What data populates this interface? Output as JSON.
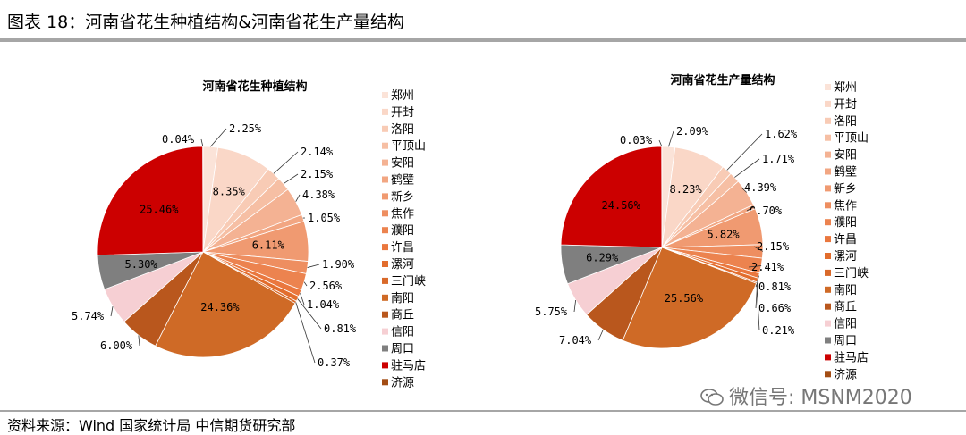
{
  "header": {
    "title": "图表 18：河南省花生种植结构&河南省花生产量结构"
  },
  "footer": {
    "source": "资料来源：Wind 国家统计局 中信期货研究部"
  },
  "watermark": {
    "text": "微信号: MSNM2020",
    "icon": "wechat-icon"
  },
  "colors": {
    "郑州": "#fbe3d8",
    "开封": "#fad7c7",
    "洛阳": "#f8cbb5",
    "平顶山": "#f6bfa4",
    "安阳": "#f4b293",
    "鹤壁": "#f2a682",
    "新乡": "#f09a71",
    "焦作": "#ee8e60",
    "濮阳": "#ec834f",
    "许昌": "#ea773e",
    "漯河": "#e26d2d",
    "三门峡": "#d9692a",
    "南阳": "#cf6a26",
    "商丘": "#b9571d",
    "信阳": "#f6cfd3",
    "周口": "#7f7f7f",
    "驻马店": "#cc0000",
    "济源": "#a34d14"
  },
  "chart_data": [
    {
      "type": "pie",
      "title": "河南省花生种植结构",
      "labels": [
        "郑州",
        "开封",
        "洛阳",
        "平顶山",
        "安阳",
        "鹤壁",
        "新乡",
        "焦作",
        "濮阳",
        "许昌",
        "漯河",
        "三门峡",
        "南阳",
        "商丘",
        "信阳",
        "周口",
        "驻马店",
        "济源"
      ],
      "values": [
        2.25,
        8.35,
        2.14,
        2.15,
        4.38,
        1.05,
        6.11,
        1.9,
        2.56,
        1.04,
        0.81,
        0.37,
        24.36,
        6.0,
        5.74,
        5.3,
        25.46,
        0.04
      ],
      "data_labels": [
        "2.25%",
        "8.35%",
        "2.14%",
        "2.15%",
        "4.38%",
        "1.05%",
        "6.11%",
        "1.90%",
        "2.56%",
        "1.04%",
        "0.81%",
        "0.37%",
        "24.36%",
        "6.00%",
        "5.74%",
        "5.30%",
        "25.46%",
        "0.04%"
      ],
      "legend_position": "right"
    },
    {
      "type": "pie",
      "title": "河南省花生产量结构",
      "labels": [
        "郑州",
        "开封",
        "洛阳",
        "平顶山",
        "安阳",
        "鹤壁",
        "新乡",
        "焦作",
        "濮阳",
        "许昌",
        "漯河",
        "三门峡",
        "南阳",
        "商丘",
        "信阳",
        "周口",
        "驻马店",
        "济源"
      ],
      "values": [
        2.09,
        8.23,
        1.62,
        1.71,
        4.39,
        0.7,
        5.82,
        2.15,
        2.41,
        0.81,
        0.66,
        0.21,
        25.56,
        7.04,
        5.75,
        6.29,
        24.56,
        0.03
      ],
      "data_labels": [
        "2.09%",
        "8.23%",
        "1.62%",
        "1.71%",
        "4.39%",
        "0.70%",
        "5.82%",
        "2.15%",
        "2.41%",
        "0.81%",
        "0.66%",
        "0.21%",
        "25.56%",
        "7.04%",
        "5.75%",
        "6.29%",
        "24.56%",
        "0.03%"
      ],
      "legend_position": "right"
    }
  ]
}
